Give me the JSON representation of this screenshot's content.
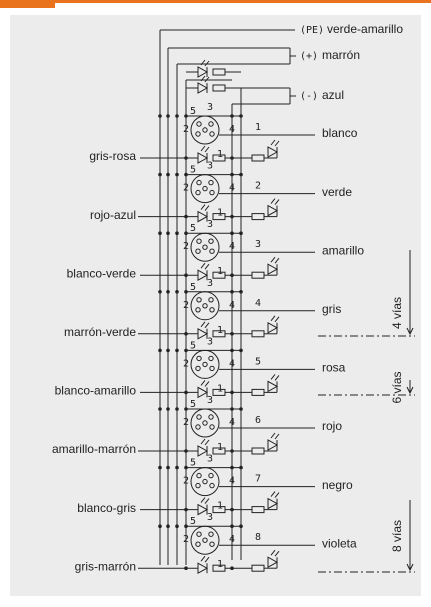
{
  "power": [
    {
      "label": "(PE)",
      "name": "verde-amarillo"
    },
    {
      "label": "(+)",
      "name": "marrón"
    },
    {
      "label": "(-)",
      "name": "azul"
    }
  ],
  "connector_pins": [
    "5",
    "3",
    "2",
    "4",
    "1"
  ],
  "channels": [
    {
      "number": "1",
      "output": "blanco",
      "input": "gris-rosa"
    },
    {
      "number": "2",
      "output": "verde",
      "input": "rojo-azul"
    },
    {
      "number": "3",
      "output": "amarillo",
      "input": "blanco-verde"
    },
    {
      "number": "4",
      "output": "gris",
      "input": "marrón-verde"
    },
    {
      "number": "5",
      "output": "rosa",
      "input": "blanco-amarillo"
    },
    {
      "number": "6",
      "output": "rojo",
      "input": "amarillo-marrón"
    },
    {
      "number": "7",
      "output": "negro",
      "input": "blanco-gris"
    },
    {
      "number": "8",
      "output": "violeta",
      "input": "gris-marrón"
    }
  ],
  "ranges": [
    "4 vías",
    "6 vías",
    "8 vías"
  ]
}
